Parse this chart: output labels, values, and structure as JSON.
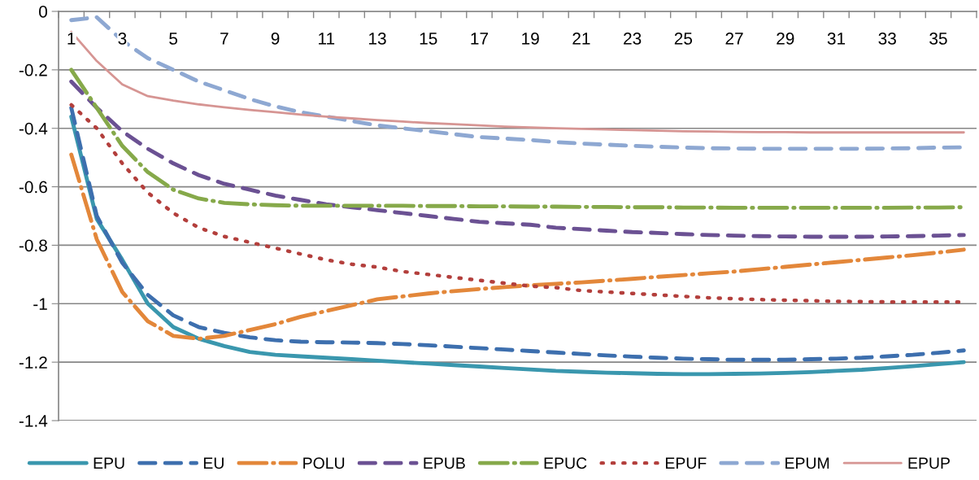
{
  "chart_data": {
    "type": "line",
    "categories": [
      "1",
      null,
      "3",
      null,
      "5",
      null,
      "7",
      null,
      "9",
      null,
      "11",
      null,
      "13",
      null,
      "15",
      null,
      "17",
      null,
      "19",
      null,
      "21",
      null,
      "23",
      null,
      "25",
      null,
      "27",
      null,
      "29",
      null,
      "31",
      null,
      "33",
      null,
      "35",
      null
    ],
    "ylim": [
      -1.4,
      0
    ],
    "yticks": [
      -1.4,
      -1.2,
      -1,
      -0.8,
      -0.6,
      -0.4,
      -0.2,
      0
    ],
    "grid": "y",
    "legend": "bottom",
    "series": [
      {
        "name": "EPU",
        "color": "#3a97ae",
        "line_style": "solid",
        "values": [
          -0.36,
          -0.71,
          -0.85,
          -1.0,
          -1.08,
          -1.12,
          -1.145,
          -1.165,
          -1.175,
          -1.18,
          -1.185,
          -1.19,
          -1.195,
          -1.2,
          -1.205,
          -1.21,
          -1.215,
          -1.22,
          -1.225,
          -1.23,
          -1.233,
          -1.236,
          -1.238,
          -1.24,
          -1.241,
          -1.241,
          -1.24,
          -1.239,
          -1.237,
          -1.234,
          -1.23,
          -1.226,
          -1.22,
          -1.214,
          -1.207,
          -1.2
        ]
      },
      {
        "name": "EU",
        "color": "#3d6fae",
        "line_style": "dashed",
        "values": [
          -0.33,
          -0.7,
          -0.86,
          -0.97,
          -1.04,
          -1.08,
          -1.1,
          -1.115,
          -1.125,
          -1.13,
          -1.132,
          -1.133,
          -1.135,
          -1.138,
          -1.142,
          -1.147,
          -1.152,
          -1.157,
          -1.162,
          -1.167,
          -1.172,
          -1.177,
          -1.181,
          -1.185,
          -1.188,
          -1.19,
          -1.192,
          -1.192,
          -1.192,
          -1.19,
          -1.188,
          -1.185,
          -1.18,
          -1.175,
          -1.168,
          -1.16
        ]
      },
      {
        "name": "POLU",
        "color": "#e3873a",
        "line_style": "dashdot",
        "values": [
          -0.49,
          -0.78,
          -0.96,
          -1.06,
          -1.11,
          -1.12,
          -1.11,
          -1.09,
          -1.07,
          -1.045,
          -1.025,
          -1.005,
          -0.985,
          -0.975,
          -0.965,
          -0.957,
          -0.95,
          -0.943,
          -0.937,
          -0.932,
          -0.927,
          -0.921,
          -0.915,
          -0.908,
          -0.902,
          -0.896,
          -0.89,
          -0.882,
          -0.874,
          -0.866,
          -0.858,
          -0.85,
          -0.842,
          -0.834,
          -0.825,
          -0.815
        ]
      },
      {
        "name": "EPUB",
        "color": "#6b5193",
        "line_style": "dashed",
        "values": [
          -0.24,
          -0.33,
          -0.41,
          -0.47,
          -0.52,
          -0.56,
          -0.59,
          -0.61,
          -0.63,
          -0.645,
          -0.66,
          -0.67,
          -0.68,
          -0.69,
          -0.7,
          -0.71,
          -0.72,
          -0.725,
          -0.73,
          -0.74,
          -0.745,
          -0.75,
          -0.755,
          -0.758,
          -0.762,
          -0.765,
          -0.767,
          -0.769,
          -0.77,
          -0.771,
          -0.771,
          -0.771,
          -0.77,
          -0.769,
          -0.767,
          -0.765
        ]
      },
      {
        "name": "EPUC",
        "color": "#86a94a",
        "line_style": "dashdot",
        "values": [
          -0.2,
          -0.33,
          -0.46,
          -0.55,
          -0.61,
          -0.64,
          -0.655,
          -0.66,
          -0.663,
          -0.665,
          -0.665,
          -0.665,
          -0.665,
          -0.665,
          -0.666,
          -0.666,
          -0.667,
          -0.667,
          -0.668,
          -0.668,
          -0.669,
          -0.669,
          -0.67,
          -0.67,
          -0.671,
          -0.671,
          -0.672,
          -0.672,
          -0.672,
          -0.672,
          -0.672,
          -0.672,
          -0.672,
          -0.671,
          -0.671,
          -0.67
        ]
      },
      {
        "name": "EPUF",
        "color": "#b33f3c",
        "line_style": "dotted",
        "values": [
          -0.32,
          -0.4,
          -0.52,
          -0.62,
          -0.69,
          -0.74,
          -0.77,
          -0.79,
          -0.81,
          -0.83,
          -0.85,
          -0.865,
          -0.875,
          -0.89,
          -0.9,
          -0.91,
          -0.92,
          -0.93,
          -0.94,
          -0.945,
          -0.955,
          -0.96,
          -0.965,
          -0.97,
          -0.975,
          -0.98,
          -0.983,
          -0.986,
          -0.988,
          -0.99,
          -0.992,
          -0.993,
          -0.994,
          -0.994,
          -0.994,
          -0.994
        ]
      },
      {
        "name": "EPUM",
        "color": "#8ea8d2",
        "line_style": "dashed",
        "values": [
          -0.03,
          -0.02,
          -0.1,
          -0.16,
          -0.2,
          -0.24,
          -0.27,
          -0.3,
          -0.325,
          -0.345,
          -0.36,
          -0.375,
          -0.39,
          -0.4,
          -0.41,
          -0.42,
          -0.43,
          -0.435,
          -0.44,
          -0.447,
          -0.452,
          -0.456,
          -0.46,
          -0.463,
          -0.466,
          -0.468,
          -0.469,
          -0.47,
          -0.47,
          -0.47,
          -0.47,
          -0.47,
          -0.469,
          -0.468,
          -0.466,
          -0.465
        ]
      },
      {
        "name": "EPUP",
        "color": "#d69593",
        "line_style": "solid",
        "values": [
          -0.07,
          -0.17,
          -0.25,
          -0.29,
          -0.305,
          -0.318,
          -0.328,
          -0.337,
          -0.345,
          -0.353,
          -0.36,
          -0.366,
          -0.372,
          -0.377,
          -0.382,
          -0.386,
          -0.39,
          -0.394,
          -0.397,
          -0.4,
          -0.402,
          -0.404,
          -0.406,
          -0.408,
          -0.41,
          -0.411,
          -0.412,
          -0.413,
          -0.413,
          -0.414,
          -0.414,
          -0.414,
          -0.414,
          -0.414,
          -0.414,
          -0.414
        ]
      }
    ]
  }
}
